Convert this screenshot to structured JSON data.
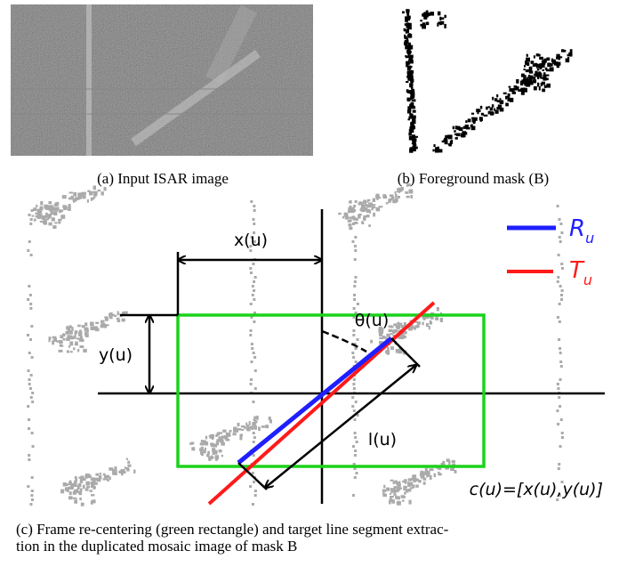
{
  "figure": {
    "panel_a_caption": "(a) Input ISAR image",
    "panel_b_caption": "(b) Foreground mask (B)",
    "panel_c_caption_lines": [
      "(c) Frame re-centering (green rectangle) and target line segment extrac-",
      "tion in the duplicated mosaic image of mask B"
    ],
    "labels": {
      "x": "x(u)",
      "y": "y(u)",
      "theta": "θ(u)",
      "l": "l(u)",
      "c": "c(u)=[x(u),y(u)]"
    },
    "legend": [
      {
        "symbol": "R",
        "subscript": "u"
      },
      {
        "symbol": "T",
        "subscript": "u"
      }
    ]
  }
}
